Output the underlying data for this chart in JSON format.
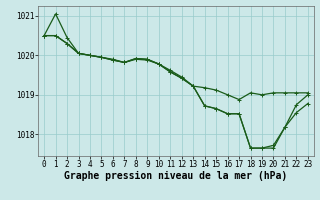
{
  "xlabel": "Graphe pression niveau de la mer (hPa)",
  "xlim": [
    -0.5,
    23.5
  ],
  "ylim": [
    1017.45,
    1021.25
  ],
  "yticks": [
    1018,
    1019,
    1020,
    1021
  ],
  "xticks": [
    0,
    1,
    2,
    3,
    4,
    5,
    6,
    7,
    8,
    9,
    10,
    11,
    12,
    13,
    14,
    15,
    16,
    17,
    18,
    19,
    20,
    21,
    22,
    23
  ],
  "bg_color": "#cce8e8",
  "grid_color": "#99cccc",
  "line_color": "#1a5c1a",
  "line1": [
    1020.5,
    1021.05,
    1020.45,
    1020.05,
    1020.0,
    1019.95,
    1019.9,
    1019.82,
    1019.9,
    1019.88,
    1019.78,
    1019.62,
    1019.45,
    1019.22,
    1019.18,
    1019.12,
    1019.0,
    1018.88,
    1019.05,
    1019.0,
    1019.05,
    1019.05,
    1019.05,
    1019.05
  ],
  "line2": [
    1020.5,
    1020.5,
    1020.3,
    1020.05,
    1020.0,
    1019.95,
    1019.88,
    1019.82,
    1019.92,
    1019.9,
    1019.78,
    1019.58,
    1019.42,
    1019.22,
    1018.72,
    1018.65,
    1018.52,
    1018.52,
    1017.65,
    1017.65,
    1017.72,
    1018.18,
    1018.75,
    1019.0
  ],
  "line3": [
    1020.5,
    1020.5,
    1020.3,
    1020.05,
    1020.0,
    1019.95,
    1019.88,
    1019.82,
    1019.92,
    1019.9,
    1019.78,
    1019.58,
    1019.42,
    1019.22,
    1018.72,
    1018.65,
    1018.52,
    1018.52,
    1017.65,
    1017.65,
    1017.65,
    1018.18,
    1018.55,
    1018.78
  ],
  "marker": "+",
  "marker_size": 3,
  "linewidth": 0.9,
  "tick_fontsize": 5.5,
  "label_fontsize": 7.0
}
